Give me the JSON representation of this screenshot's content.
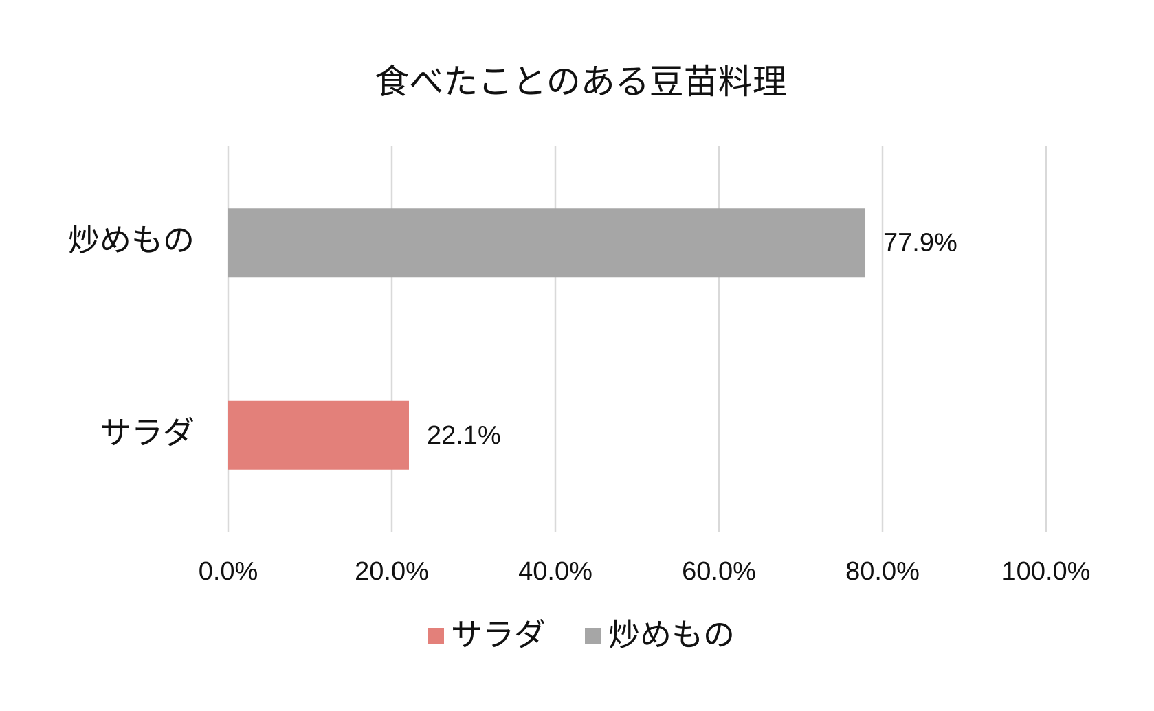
{
  "chart_data": {
    "type": "hbar",
    "title": "食べたことのある豆苗料理",
    "categories": [
      "サラダ",
      "炒めもの"
    ],
    "series": [
      {
        "name": "サラダ",
        "color": "#e3807a",
        "values": [
          22.1,
          null
        ],
        "value_labels": [
          "22.1%",
          null
        ]
      },
      {
        "name": "炒めもの",
        "color": "#a6a6a6",
        "values": [
          null,
          77.9
        ],
        "value_labels": [
          null,
          "77.9%"
        ]
      }
    ],
    "xlim": [
      0,
      100
    ],
    "xticks": [
      {
        "value": 0,
        "label": "0.0%"
      },
      {
        "value": 20,
        "label": "20.0%"
      },
      {
        "value": 40,
        "label": "40.0%"
      },
      {
        "value": 60,
        "label": "60.0%"
      },
      {
        "value": 80,
        "label": "80.0%"
      },
      {
        "value": 100,
        "label": "100.0%"
      }
    ],
    "grid": true,
    "legend": "bottom"
  }
}
